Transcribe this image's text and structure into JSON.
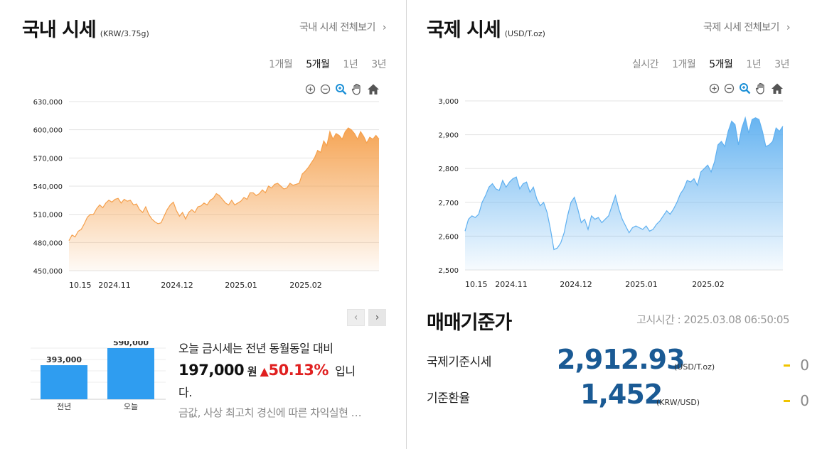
{
  "domestic": {
    "title": "국내 시세",
    "unit": "(KRW/3.75g)",
    "view_all": "국내 시세 전체보기",
    "periods": [
      "1개월",
      "5개월",
      "1년",
      "3년"
    ],
    "active_period": "5개월",
    "chart_data": {
      "type": "area",
      "ylim": [
        450000,
        630000
      ],
      "y_ticks": [
        "450,000",
        "480,000",
        "510,000",
        "540,000",
        "570,000",
        "600,000",
        "630,000"
      ],
      "x_ticks": [
        "10.15",
        "2024.11",
        "2024.12",
        "2025.01",
        "2025.02"
      ],
      "color": "#f5a04c",
      "values": [
        482000,
        488000,
        486000,
        492000,
        494000,
        500000,
        507000,
        510000,
        510000,
        516000,
        520000,
        517000,
        522000,
        525000,
        523000,
        526000,
        527000,
        522000,
        526000,
        524000,
        525000,
        520000,
        521000,
        515000,
        512000,
        518000,
        510000,
        505000,
        502000,
        500000,
        501000,
        508000,
        515000,
        520000,
        523000,
        514000,
        508000,
        512000,
        505000,
        512000,
        515000,
        512000,
        518000,
        519000,
        522000,
        520000,
        525000,
        527000,
        532000,
        530000,
        526000,
        522000,
        520000,
        525000,
        520000,
        522000,
        524000,
        528000,
        526000,
        533000,
        533000,
        530000,
        532000,
        536000,
        533000,
        540000,
        538000,
        542000,
        543000,
        540000,
        537000,
        538000,
        543000,
        541000,
        542000,
        543000,
        553000,
        556000,
        560000,
        565000,
        570000,
        578000,
        576000,
        588000,
        583000,
        598000,
        590000,
        596000,
        594000,
        590000,
        598000,
        602000,
        600000,
        596000,
        590000,
        598000,
        593000,
        586000,
        592000,
        590000,
        594000,
        590000
      ]
    },
    "compare": {
      "bars": [
        {
          "label": "전년",
          "value_text": "393,000",
          "value": 393000
        },
        {
          "label": "오늘",
          "value_text": "590,000",
          "value": 590000
        }
      ],
      "msg_line1": "오늘 금시세는 전년 동월동일 대비",
      "diff": "197,000",
      "won": "원",
      "arrow": "▲",
      "pct": "50.13%",
      "msg_tail": "입니",
      "msg_line3": "다.",
      "news": "금값, 사상 최고치 경신에 따른 차익실현 …"
    }
  },
  "international": {
    "title": "국제 시세",
    "unit": "(USD/T.oz)",
    "view_all": "국제 시세 전체보기",
    "periods": [
      "실시간",
      "1개월",
      "5개월",
      "1년",
      "3년"
    ],
    "active_period": "5개월",
    "chart_data": {
      "type": "area",
      "ylim": [
        2500,
        3000
      ],
      "y_ticks": [
        "2,500",
        "2,600",
        "2,700",
        "2,800",
        "2,900",
        "3,000"
      ],
      "x_ticks": [
        "10.15",
        "2024.11",
        "2024.12",
        "2025.01",
        "2025.02"
      ],
      "color": "#5fb0f0",
      "values": [
        2615,
        2650,
        2660,
        2655,
        2665,
        2700,
        2720,
        2745,
        2755,
        2740,
        2735,
        2765,
        2745,
        2760,
        2770,
        2775,
        2740,
        2755,
        2760,
        2730,
        2745,
        2710,
        2690,
        2700,
        2670,
        2620,
        2560,
        2565,
        2580,
        2610,
        2660,
        2700,
        2715,
        2680,
        2640,
        2650,
        2620,
        2660,
        2650,
        2655,
        2640,
        2650,
        2660,
        2690,
        2720,
        2680,
        2650,
        2630,
        2610,
        2625,
        2630,
        2625,
        2620,
        2630,
        2615,
        2620,
        2635,
        2645,
        2660,
        2675,
        2665,
        2680,
        2700,
        2725,
        2740,
        2765,
        2760,
        2770,
        2750,
        2790,
        2800,
        2810,
        2790,
        2820,
        2870,
        2880,
        2865,
        2910,
        2940,
        2930,
        2870,
        2920,
        2950,
        2905,
        2945,
        2950,
        2945,
        2910,
        2865,
        2870,
        2880,
        2920,
        2910,
        2925
      ]
    }
  },
  "trade": {
    "title": "매매기준가",
    "notice": "고시시간 : 2025.03.08 06:50:05",
    "rows": [
      {
        "label": "국제기준시세",
        "value": "2,912.93",
        "unit": "(USD/T.oz)",
        "change": "0"
      },
      {
        "label": "기준환율",
        "value": "1,452",
        "unit": "(KRW/USD)",
        "change": "0"
      }
    ]
  }
}
